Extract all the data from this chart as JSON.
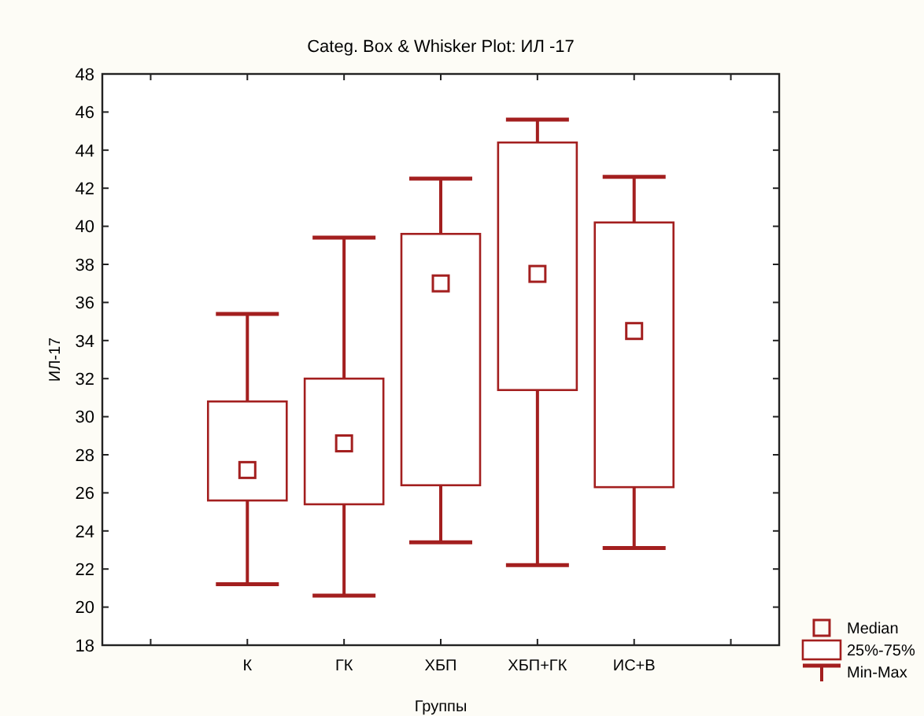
{
  "chart_data": {
    "type": "box",
    "title": "Categ. Box & Whisker Plot: ИЛ -17",
    "xlabel": "Группы",
    "ylabel": "ИЛ-17",
    "categories": [
      "К",
      "ГК",
      "ХБП",
      "ХБП+ГК",
      "ИС+В"
    ],
    "color": "#a31f1f",
    "boxes": [
      {
        "low": 21.2,
        "q1": 25.6,
        "median": 27.2,
        "q3": 30.8,
        "high": 35.4
      },
      {
        "low": 20.6,
        "q1": 25.4,
        "median": 28.6,
        "q3": 32.0,
        "high": 39.4
      },
      {
        "low": 23.4,
        "q1": 26.4,
        "median": 37.0,
        "q3": 39.6,
        "high": 42.5
      },
      {
        "low": 22.2,
        "q1": 31.4,
        "median": 37.5,
        "q3": 44.4,
        "high": 45.6
      },
      {
        "low": 23.1,
        "q1": 26.3,
        "median": 34.5,
        "q3": 40.2,
        "high": 42.6
      }
    ],
    "ylim": [
      18,
      48
    ],
    "yticks": [
      18,
      20,
      22,
      24,
      26,
      28,
      30,
      32,
      34,
      36,
      38,
      40,
      42,
      44,
      46,
      48
    ],
    "annotations": [
      "Median",
      "25%-75%",
      "Min-Max"
    ]
  }
}
